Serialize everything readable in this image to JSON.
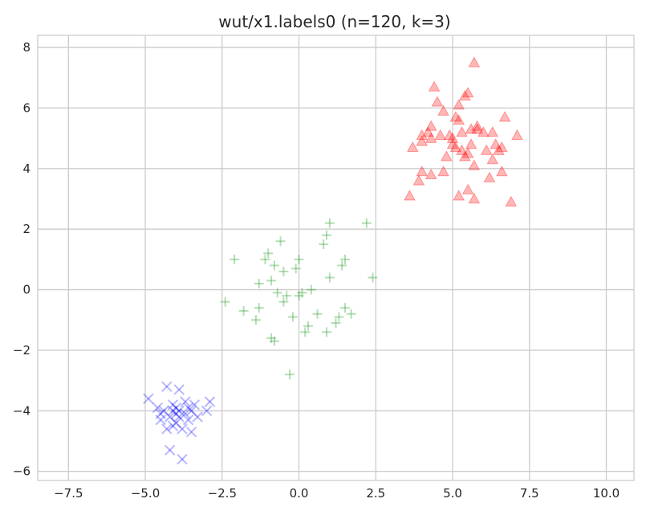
{
  "chart_data": {
    "type": "scatter",
    "title": "wut/x1.labels0 (n=120, k=3)",
    "xlabel": "",
    "ylabel": "",
    "xlim": [
      -8.5,
      10.9
    ],
    "ylim": [
      -6.3,
      8.4
    ],
    "xticks": [
      -7.5,
      -5.0,
      -2.5,
      0.0,
      2.5,
      5.0,
      7.5,
      10.0
    ],
    "xtick_labels": [
      "−7.5",
      "−5.0",
      "−2.5",
      "0.0",
      "2.5",
      "5.0",
      "7.5",
      "10.0"
    ],
    "yticks": [
      -6,
      -4,
      -2,
      0,
      2,
      4,
      6,
      8
    ],
    "ytick_labels": [
      "−6",
      "−4",
      "−2",
      "0",
      "2",
      "4",
      "6",
      "8"
    ],
    "grid": true,
    "series": [
      {
        "marker": "x",
        "color": "#0000ff",
        "points": [
          [
            -4.9,
            -3.6
          ],
          [
            -4.6,
            -3.9
          ],
          [
            -4.5,
            -4.1
          ],
          [
            -4.5,
            -4.3
          ],
          [
            -4.4,
            -4.0
          ],
          [
            -4.3,
            -3.2
          ],
          [
            -4.3,
            -4.6
          ],
          [
            -4.2,
            -4.2
          ],
          [
            -4.2,
            -5.3
          ],
          [
            -4.1,
            -3.8
          ],
          [
            -4.1,
            -4.0
          ],
          [
            -4.0,
            -4.1
          ],
          [
            -4.0,
            -4.4
          ],
          [
            -4.0,
            -3.9
          ],
          [
            -3.9,
            -4.2
          ],
          [
            -3.9,
            -3.3
          ],
          [
            -3.9,
            -4.0
          ],
          [
            -3.8,
            -4.6
          ],
          [
            -3.8,
            -5.6
          ],
          [
            -3.7,
            -4.1
          ],
          [
            -3.7,
            -3.7
          ],
          [
            -3.6,
            -4.3
          ],
          [
            -3.6,
            -3.9
          ],
          [
            -3.5,
            -4.0
          ],
          [
            -3.5,
            -4.7
          ],
          [
            -3.4,
            -3.8
          ],
          [
            -3.3,
            -4.2
          ],
          [
            -3.0,
            -4.0
          ],
          [
            -2.9,
            -3.7
          ],
          [
            -4.1,
            -4.5
          ]
        ]
      },
      {
        "marker": "+",
        "color": "#2ca02c",
        "points": [
          [
            -2.4,
            -0.4
          ],
          [
            -2.1,
            1.0
          ],
          [
            -1.8,
            -0.7
          ],
          [
            -1.4,
            -1.0
          ],
          [
            -1.3,
            0.2
          ],
          [
            -1.3,
            -0.6
          ],
          [
            -1.1,
            1.0
          ],
          [
            -1.0,
            1.2
          ],
          [
            -0.9,
            0.3
          ],
          [
            -0.9,
            -1.6
          ],
          [
            -0.8,
            0.8
          ],
          [
            -0.8,
            -1.7
          ],
          [
            -0.7,
            -0.1
          ],
          [
            -0.6,
            1.6
          ],
          [
            -0.5,
            -0.4
          ],
          [
            -0.5,
            0.6
          ],
          [
            -0.4,
            -0.2
          ],
          [
            -0.3,
            -2.8
          ],
          [
            -0.2,
            -0.9
          ],
          [
            -0.1,
            0.7
          ],
          [
            0.0,
            1.0
          ],
          [
            0.0,
            -0.2
          ],
          [
            0.2,
            -1.4
          ],
          [
            0.3,
            -1.2
          ],
          [
            0.4,
            0.0
          ],
          [
            0.6,
            -0.8
          ],
          [
            0.8,
            1.5
          ],
          [
            0.9,
            1.8
          ],
          [
            0.9,
            -1.4
          ],
          [
            1.0,
            2.2
          ],
          [
            1.0,
            0.4
          ],
          [
            1.2,
            -1.1
          ],
          [
            1.3,
            -0.9
          ],
          [
            1.4,
            0.8
          ],
          [
            1.5,
            1.0
          ],
          [
            1.5,
            -0.6
          ],
          [
            1.7,
            -0.8
          ],
          [
            2.2,
            2.2
          ],
          [
            2.4,
            0.4
          ],
          [
            0.1,
            -0.1
          ]
        ]
      },
      {
        "marker": "^",
        "color": "#ff0000",
        "points": [
          [
            3.6,
            3.1
          ],
          [
            3.7,
            4.7
          ],
          [
            3.9,
            3.6
          ],
          [
            4.0,
            3.9
          ],
          [
            4.0,
            5.1
          ],
          [
            4.0,
            4.9
          ],
          [
            4.2,
            5.2
          ],
          [
            4.3,
            5.4
          ],
          [
            4.3,
            5.0
          ],
          [
            4.3,
            3.8
          ],
          [
            4.4,
            6.7
          ],
          [
            4.5,
            6.2
          ],
          [
            4.6,
            5.1
          ],
          [
            4.7,
            5.9
          ],
          [
            4.7,
            3.9
          ],
          [
            4.8,
            4.4
          ],
          [
            4.9,
            5.1
          ],
          [
            5.0,
            5.0
          ],
          [
            5.0,
            4.8
          ],
          [
            5.1,
            4.7
          ],
          [
            5.1,
            5.7
          ],
          [
            5.2,
            5.6
          ],
          [
            5.2,
            6.1
          ],
          [
            5.2,
            3.1
          ],
          [
            5.3,
            4.6
          ],
          [
            5.3,
            5.2
          ],
          [
            5.4,
            4.4
          ],
          [
            5.4,
            6.4
          ],
          [
            5.5,
            4.5
          ],
          [
            5.5,
            6.5
          ],
          [
            5.5,
            3.3
          ],
          [
            5.6,
            4.8
          ],
          [
            5.7,
            3.0
          ],
          [
            5.7,
            4.1
          ],
          [
            5.7,
            7.5
          ],
          [
            5.8,
            5.4
          ],
          [
            5.8,
            5.3
          ],
          [
            6.0,
            5.2
          ],
          [
            6.1,
            4.6
          ],
          [
            6.2,
            3.7
          ],
          [
            6.3,
            4.3
          ],
          [
            6.3,
            5.2
          ],
          [
            6.4,
            4.8
          ],
          [
            6.5,
            4.6
          ],
          [
            6.6,
            3.9
          ],
          [
            6.6,
            4.7
          ],
          [
            6.7,
            5.7
          ],
          [
            6.9,
            2.9
          ],
          [
            7.1,
            5.1
          ],
          [
            5.6,
            5.3
          ]
        ]
      }
    ]
  }
}
